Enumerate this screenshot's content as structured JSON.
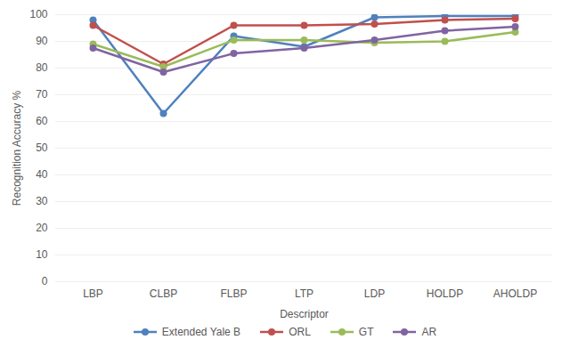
{
  "chart_data": {
    "type": "line",
    "x_label": "Descriptor",
    "y_label": "Recognition Accuracy %",
    "categories": [
      "LBP",
      "CLBP",
      "FLBP",
      "LTP",
      "LDP",
      "HOLDP",
      "AHOLDP"
    ],
    "series": [
      {
        "name": "Extended Yale B",
        "color": "#4f81bd",
        "values": [
          98,
          63,
          92,
          88,
          99,
          99.5,
          99.5
        ]
      },
      {
        "name": "ORL",
        "color": "#c0504d",
        "values": [
          96,
          81.5,
          96,
          96,
          96.5,
          98,
          98.5
        ]
      },
      {
        "name": "GT",
        "color": "#9bbb59",
        "values": [
          89,
          80.5,
          90.5,
          90.5,
          89.5,
          90,
          93.5
        ]
      },
      {
        "name": "AR",
        "color": "#8064a2",
        "values": [
          87.5,
          78.5,
          85.5,
          87.5,
          90.5,
          94,
          95.5
        ]
      }
    ],
    "ylim": [
      0,
      100
    ],
    "yticks": [
      0,
      10,
      20,
      30,
      40,
      50,
      60,
      70,
      80,
      90,
      100
    ],
    "grid": true,
    "legend": "bottom",
    "marker": "circle"
  }
}
